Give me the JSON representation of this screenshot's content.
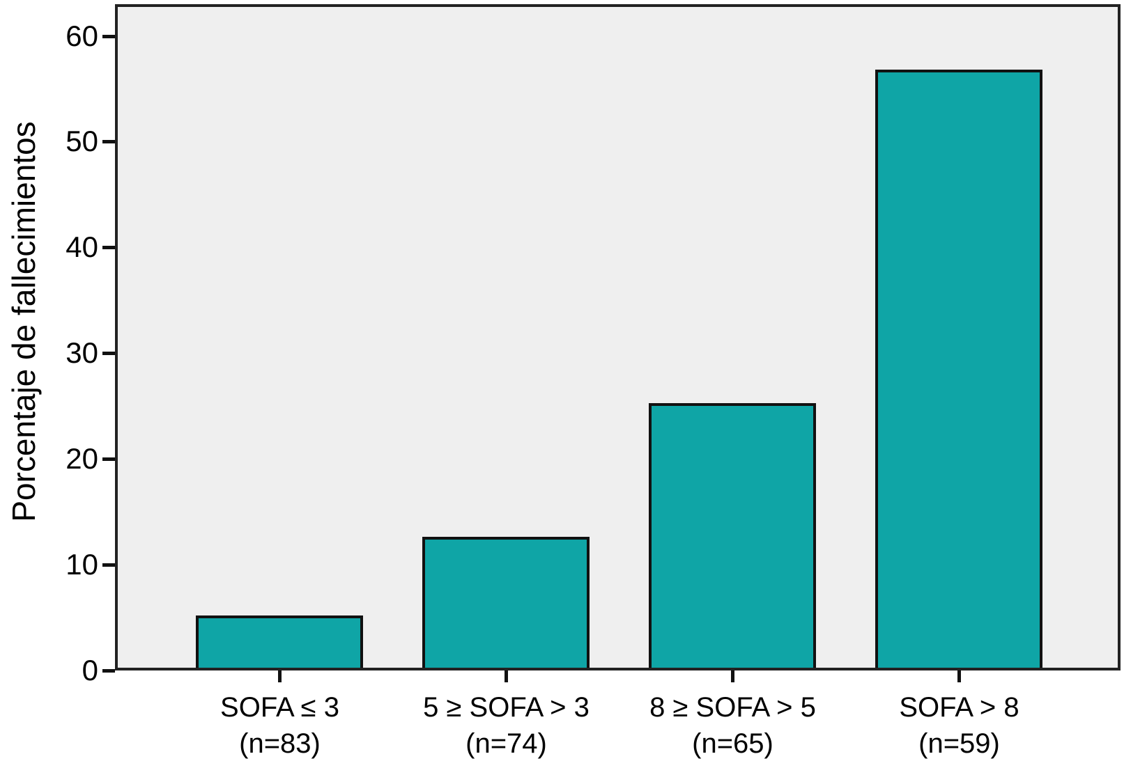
{
  "chart_data": {
    "type": "bar",
    "title": "",
    "xlabel": "",
    "ylabel": "Porcentaje de fallecimientos",
    "categories": [
      "SOFA ≤ 3",
      "5 ≥ SOFA > 3",
      "8 ≥ SOFA > 5",
      "SOFA > 8"
    ],
    "category_sublabels": [
      "(n=83)",
      "(n=74)",
      "(n=65)",
      "(n=59)"
    ],
    "values": [
      5,
      12.5,
      25.2,
      57
    ],
    "yticks": [
      "0",
      "10",
      "20",
      "30",
      "40",
      "50",
      "60"
    ],
    "ytick_values": [
      0,
      10,
      20,
      30,
      40,
      50,
      60
    ],
    "ylim": [
      0,
      63
    ],
    "grid": false,
    "legend": null,
    "colors": {
      "bar_fill": "#0FA5A6",
      "bar_border": "#111111",
      "plot_background": "#EFEFEF",
      "plot_border": "#222222",
      "text": "#000000"
    }
  }
}
